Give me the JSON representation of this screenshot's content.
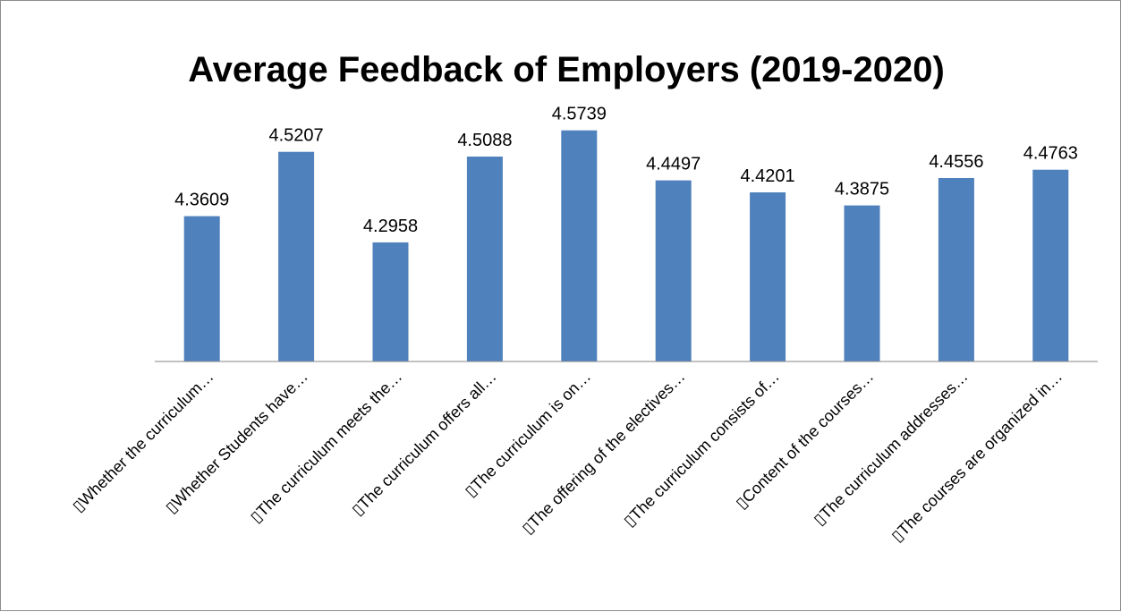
{
  "chart_data": {
    "type": "bar",
    "title": "Average Feedback of Employers (2019-2020)",
    "xlabel": "",
    "ylabel": "",
    "ylim": [
      4.0,
      4.6
    ],
    "grid": false,
    "legend": "none",
    "bar_color": "#4f81bd",
    "categories": [
      "▯Whether the curriculum…",
      "▯Whether Students have…",
      "▯The curriculum meets the…",
      "▯The curriculum offers all…",
      "▯The curriculum is on…",
      "▯The offering of the electives…",
      "▯The curriculum consists of…",
      "▯Content of the courses…",
      "▯The curriculum addresses…",
      "▯The courses are organized in…"
    ],
    "values": [
      4.3609,
      4.5207,
      4.2958,
      4.5088,
      4.5739,
      4.4497,
      4.4201,
      4.3875,
      4.4556,
      4.4763
    ],
    "data_labels": [
      "4.3609",
      "4.5207",
      "4.2958",
      "4.5088",
      "4.5739",
      "4.4497",
      "4.4201",
      "4.3875",
      "4.4556",
      "4.4763"
    ]
  }
}
